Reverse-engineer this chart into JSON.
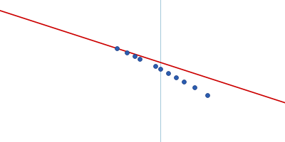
{
  "background_color": "#ffffff",
  "line_color": "#cc0000",
  "line_width": 1.2,
  "point_color": "#2a5db0",
  "point_size": 18,
  "point_edgecolor": "#1a3a80",
  "point_edgewidth": 0.5,
  "vline_color": "#aaccdd",
  "vline_linewidth": 0.8,
  "x_data": [
    0.4,
    0.44,
    0.47,
    0.49,
    0.55,
    0.57,
    0.6,
    0.63,
    0.66,
    0.7,
    0.75
  ],
  "y_data": [
    0.71,
    0.695,
    0.682,
    0.672,
    0.648,
    0.638,
    0.623,
    0.608,
    0.593,
    0.572,
    0.544
  ],
  "vline_x": 0.57,
  "line_x_start": -0.05,
  "line_x_end": 1.05,
  "line_slope": -0.295,
  "line_intercept": 0.828,
  "xlim": [
    -0.05,
    1.05
  ],
  "ylim": [
    0.38,
    0.88
  ],
  "figsize": [
    4.0,
    2.0
  ],
  "dpi": 100
}
